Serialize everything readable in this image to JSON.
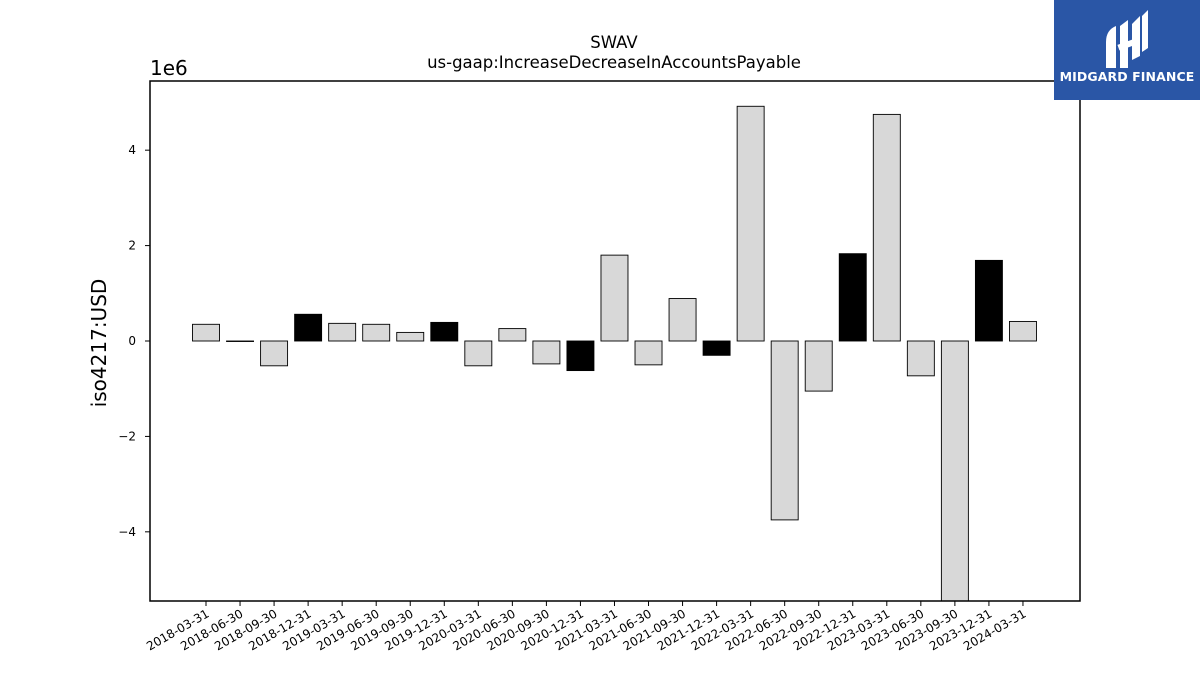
{
  "brand": {
    "name": "MIDGARD FINANCE",
    "bg_color": "#2a56a6",
    "text_color": "#ffffff"
  },
  "chart_data": {
    "type": "bar",
    "title": "SWAV",
    "subtitle": "us-gaap:IncreaseDecreaseInAccountsPayable",
    "ylabel": "iso4217:USD",
    "xlabel": "",
    "y_scale_label": "1e6",
    "ylim": [
      -5.45,
      5.45
    ],
    "yticks": [
      -4,
      -2,
      0,
      2,
      4
    ],
    "ytick_labels": [
      "−4",
      "−2",
      "0",
      "2",
      "4"
    ],
    "grid": false,
    "legend": "none",
    "categories": [
      "2018-03-31",
      "2018-06-30",
      "2018-09-30",
      "2018-12-31",
      "2019-03-31",
      "2019-06-30",
      "2019-09-30",
      "2019-12-31",
      "2020-03-31",
      "2020-06-30",
      "2020-09-30",
      "2020-12-31",
      "2021-03-31",
      "2021-06-30",
      "2021-09-30",
      "2021-12-31",
      "2022-03-31",
      "2022-06-30",
      "2022-09-30",
      "2022-12-31",
      "2023-03-31",
      "2023-06-30",
      "2023-09-30",
      "2023-12-31",
      "2024-03-31"
    ],
    "values": [
      0.35,
      0.0,
      -0.52,
      0.56,
      0.37,
      0.35,
      0.18,
      0.39,
      -0.52,
      0.26,
      -0.48,
      -0.62,
      1.8,
      -0.5,
      0.89,
      -0.3,
      4.92,
      -3.75,
      -1.05,
      1.83,
      4.75,
      -0.73,
      -5.45,
      1.69,
      0.41
    ],
    "quarter_end_flags": [
      false,
      false,
      false,
      true,
      false,
      false,
      false,
      true,
      false,
      false,
      false,
      true,
      false,
      false,
      false,
      true,
      false,
      false,
      false,
      true,
      false,
      false,
      false,
      true,
      false
    ],
    "colors": {
      "regular": "#d8d8d8",
      "q4": "#000000",
      "edge": "#000000"
    }
  }
}
